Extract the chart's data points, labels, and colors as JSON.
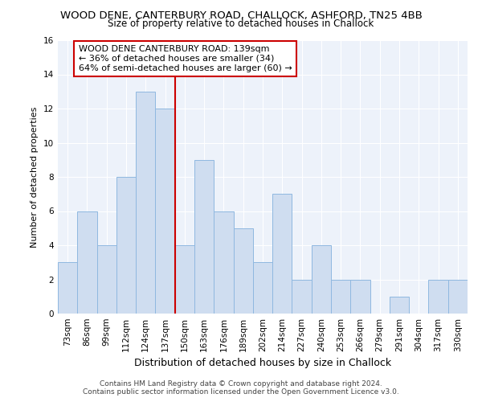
{
  "title": "WOOD DENE, CANTERBURY ROAD, CHALLOCK, ASHFORD, TN25 4BB",
  "subtitle": "Size of property relative to detached houses in Challock",
  "xlabel": "Distribution of detached houses by size in Challock",
  "ylabel": "Number of detached properties",
  "categories": [
    "73sqm",
    "86sqm",
    "99sqm",
    "112sqm",
    "124sqm",
    "137sqm",
    "150sqm",
    "163sqm",
    "176sqm",
    "189sqm",
    "202sqm",
    "214sqm",
    "227sqm",
    "240sqm",
    "253sqm",
    "266sqm",
    "279sqm",
    "291sqm",
    "304sqm",
    "317sqm",
    "330sqm"
  ],
  "values": [
    3,
    6,
    4,
    8,
    13,
    12,
    4,
    9,
    6,
    5,
    3,
    7,
    2,
    4,
    2,
    2,
    0,
    1,
    0,
    2,
    2
  ],
  "bar_color": "#cfddf0",
  "bar_edge_color": "#8fb8e0",
  "property_index": 5,
  "property_label": "WOOD DENE CANTERBURY ROAD: 139sqm",
  "line1": "← 36% of detached houses are smaller (34)",
  "line2": "64% of semi-detached houses are larger (60) →",
  "vline_color": "#cc0000",
  "annotation_box_edge_color": "#cc0000",
  "ylim": [
    0,
    16
  ],
  "yticks": [
    0,
    2,
    4,
    6,
    8,
    10,
    12,
    14,
    16
  ],
  "background_color": "#edf2fa",
  "grid_color": "#ffffff",
  "footer_line1": "Contains HM Land Registry data © Crown copyright and database right 2024.",
  "footer_line2": "Contains public sector information licensed under the Open Government Licence v3.0.",
  "title_fontsize": 9.5,
  "subtitle_fontsize": 8.5,
  "xlabel_fontsize": 9,
  "ylabel_fontsize": 8,
  "annotation_fontsize": 8,
  "tick_fontsize": 7.5
}
